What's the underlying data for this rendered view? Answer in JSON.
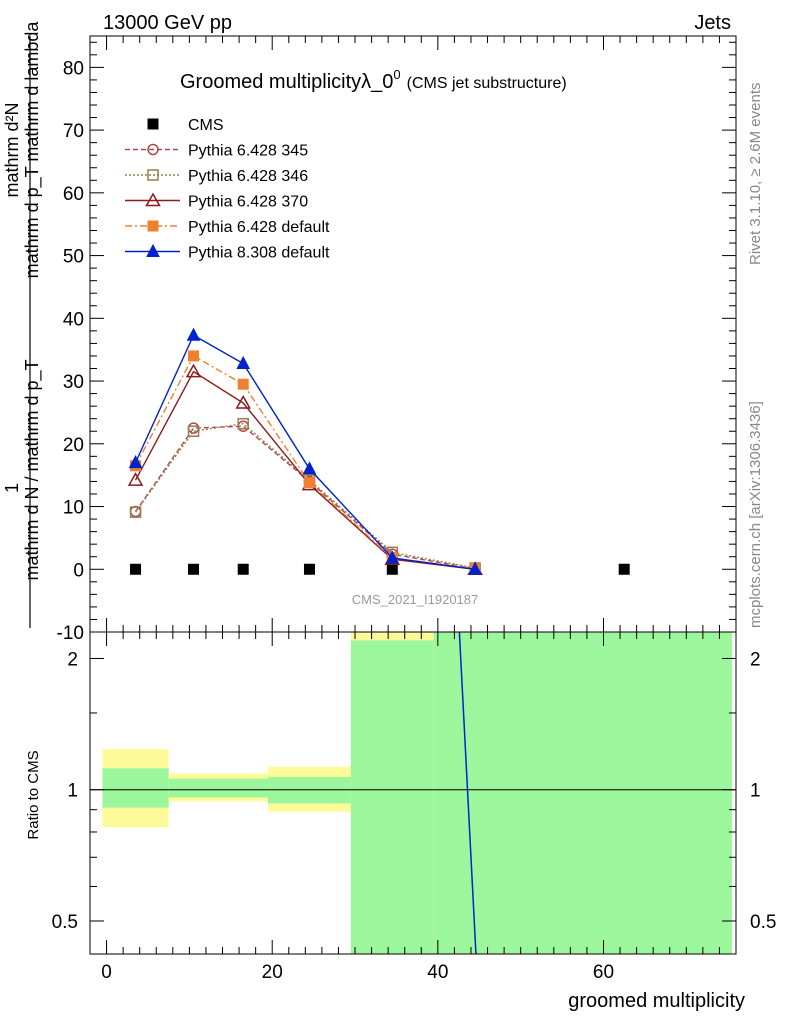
{
  "header": {
    "left": "13000 GeV pp",
    "right": "Jets",
    "title_main": "Groomed multiplicityλ_0",
    "title_sup": "0",
    "title_sub": "(CMS jet substructure)",
    "watermark": "CMS_2021_I1920187",
    "side_rivet": "Rivet 3.1.10, ≥ 2.6M events",
    "side_mcplots": "mcplots.cern.ch [arXiv:1306.3436]"
  },
  "axes": {
    "ylabel_top": "1",
    "ylabel_top_numer": "mathrm d²N",
    "ylabel_top_numer2": "mathrm d p_T mathrm d lambda",
    "ylabel_top_denom": "mathrm d N / mathrm d p_T",
    "ylabel_ratio": "Ratio to CMS",
    "xlabel": "groomed multiplicity"
  },
  "chart_data": [
    {
      "type": "line",
      "panel": "main",
      "xlim": [
        -2,
        76
      ],
      "ylim": [
        -10,
        85
      ],
      "yticks": [
        -10,
        0,
        10,
        20,
        30,
        40,
        50,
        60,
        70,
        80
      ],
      "legend_position": "top-left",
      "series": [
        {
          "name": "CMS",
          "style": "points",
          "marker": "square-filled",
          "color": "#000000",
          "x": [
            3.5,
            10.5,
            16.5,
            24.5,
            34.5,
            44.5,
            62.5
          ],
          "y": [
            0,
            0,
            0,
            0,
            0,
            0,
            0
          ]
        },
        {
          "name": "Pythia 6.428 345",
          "style": "dashed",
          "marker": "circle-open",
          "color": "#b04a4a",
          "x": [
            3.5,
            10.5,
            16.5,
            24.5,
            34.5,
            44.5
          ],
          "y": [
            9.2,
            22.5,
            22.8,
            14.0,
            2.4,
            0.1
          ]
        },
        {
          "name": "Pythia 6.428 346",
          "style": "dotted",
          "marker": "square-open",
          "color": "#9a7b4a",
          "x": [
            3.5,
            10.5,
            16.5,
            24.5,
            34.5,
            44.5
          ],
          "y": [
            9.1,
            22.0,
            23.2,
            14.2,
            2.7,
            0.2
          ]
        },
        {
          "name": "Pythia 6.428 370",
          "style": "solid",
          "marker": "triangle-open",
          "color": "#8b1a1a",
          "x": [
            3.5,
            10.5,
            16.5,
            24.5,
            34.5,
            44.5
          ],
          "y": [
            14.2,
            31.5,
            26.5,
            13.5,
            1.6,
            0.0
          ]
        },
        {
          "name": "Pythia 6.428 default",
          "style": "dashdot",
          "marker": "square-filled",
          "color": "#f08030",
          "x": [
            3.5,
            10.5,
            16.5,
            24.5,
            34.5,
            44.5
          ],
          "y": [
            16.5,
            34.0,
            29.5,
            13.8,
            1.8,
            0.1
          ]
        },
        {
          "name": "Pythia 8.308 default",
          "style": "solid",
          "marker": "triangle-filled",
          "color": "#0022cc",
          "x": [
            3.5,
            10.5,
            16.5,
            24.5,
            34.5,
            44.5
          ],
          "y": [
            17.0,
            37.3,
            32.8,
            16.0,
            1.8,
            0.0
          ]
        }
      ]
    },
    {
      "type": "area",
      "panel": "ratio",
      "scale": "log",
      "xlim": [
        -2,
        76
      ],
      "ylim": [
        0.42,
        2.3
      ],
      "yticks": [
        0.5,
        1,
        2
      ],
      "xticks": [
        0,
        20,
        40,
        60
      ],
      "reference_line": 1,
      "bands": [
        {
          "x0": -0.5,
          "x1": 7.5,
          "inner": [
            0.91,
            1.12
          ],
          "outer": [
            0.82,
            1.24
          ]
        },
        {
          "x0": 7.5,
          "x1": 19.5,
          "inner": [
            0.96,
            1.06
          ],
          "outer": [
            0.94,
            1.09
          ]
        },
        {
          "x0": 19.5,
          "x1": 29.5,
          "inner": [
            0.93,
            1.07
          ],
          "outer": [
            0.89,
            1.13
          ]
        },
        {
          "x0": 29.5,
          "x1": 39.5,
          "inner": [
            0.3,
            2.2
          ],
          "outer": [
            0.3,
            2.3
          ]
        },
        {
          "x0": 39.5,
          "x1": 75.5,
          "inner": [
            0.3,
            2.3
          ],
          "outer": [
            0.3,
            2.3
          ]
        }
      ],
      "curve": {
        "color": "#0022cc",
        "x": [
          42.6,
          44.6
        ],
        "y": [
          2.3,
          0.42
        ]
      },
      "band_colors": {
        "inner": "#9cf79c",
        "outer": "#fdfb99"
      }
    }
  ]
}
